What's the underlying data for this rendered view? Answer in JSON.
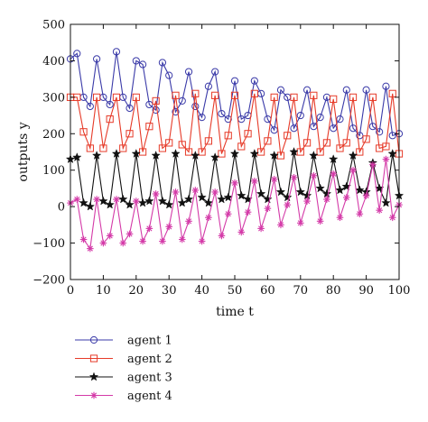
{
  "chart_data": {
    "type": "line",
    "xlabel": "time t",
    "ylabel": "outputs y",
    "xlim": [
      0,
      100
    ],
    "ylim": [
      -200,
      500
    ],
    "xticks": [
      "0",
      "10",
      "20",
      "30",
      "40",
      "50",
      "60",
      "70",
      "80",
      "90",
      "100"
    ],
    "yticks": [
      "500",
      "400",
      "300",
      "200",
      "100",
      "0",
      "−100",
      "−200"
    ],
    "legend_placement": "below",
    "grid": false,
    "x": [
      0,
      2,
      4,
      6,
      8,
      10,
      12,
      14,
      16,
      18,
      20,
      22,
      24,
      26,
      28,
      30,
      32,
      34,
      36,
      38,
      40,
      42,
      44,
      46,
      48,
      50,
      52,
      54,
      56,
      58,
      60,
      62,
      64,
      66,
      68,
      70,
      72,
      74,
      76,
      78,
      80,
      82,
      84,
      86,
      88,
      90,
      92,
      94,
      96,
      98,
      100
    ],
    "series": [
      {
        "name": "agent 1",
        "color": "#3a3aa8",
        "marker": "circle",
        "values": [
          405,
          420,
          300,
          275,
          405,
          300,
          280,
          425,
          300,
          270,
          400,
          390,
          280,
          265,
          395,
          360,
          260,
          290,
          370,
          275,
          245,
          330,
          370,
          255,
          240,
          345,
          240,
          250,
          345,
          310,
          240,
          210,
          320,
          300,
          215,
          250,
          320,
          220,
          245,
          300,
          215,
          240,
          320,
          215,
          195,
          320,
          220,
          205,
          330,
          195,
          200
        ]
      },
      {
        "name": "agent 2",
        "color": "#e63a28",
        "marker": "square",
        "values": [
          300,
          300,
          205,
          160,
          300,
          160,
          240,
          300,
          160,
          200,
          300,
          150,
          220,
          290,
          160,
          175,
          305,
          170,
          150,
          310,
          150,
          180,
          305,
          145,
          195,
          305,
          165,
          200,
          310,
          150,
          180,
          300,
          140,
          195,
          300,
          150,
          175,
          305,
          150,
          175,
          295,
          160,
          175,
          300,
          150,
          185,
          300,
          160,
          165,
          310,
          145
        ]
      },
      {
        "name": "agent 3",
        "color": "#111111",
        "marker": "star",
        "values": [
          130,
          135,
          10,
          0,
          140,
          15,
          5,
          145,
          20,
          5,
          145,
          10,
          15,
          140,
          15,
          5,
          145,
          10,
          20,
          140,
          25,
          10,
          135,
          20,
          25,
          145,
          30,
          20,
          145,
          35,
          20,
          140,
          40,
          25,
          150,
          40,
          30,
          140,
          50,
          35,
          130,
          45,
          55,
          140,
          45,
          40,
          120,
          50,
          10,
          145,
          30
        ]
      },
      {
        "name": "agent 4",
        "color": "#d43aa8",
        "marker": "asterisk",
        "values": [
          10,
          20,
          -90,
          -115,
          20,
          -100,
          -80,
          20,
          -100,
          -75,
          15,
          -95,
          -60,
          35,
          -95,
          -55,
          40,
          -90,
          -40,
          45,
          -95,
          -30,
          40,
          -80,
          -20,
          65,
          -70,
          -15,
          70,
          -60,
          -5,
          75,
          -50,
          5,
          80,
          -45,
          15,
          85,
          -40,
          20,
          90,
          -30,
          25,
          100,
          -20,
          30,
          115,
          -10,
          130,
          -30,
          5
        ]
      }
    ]
  }
}
